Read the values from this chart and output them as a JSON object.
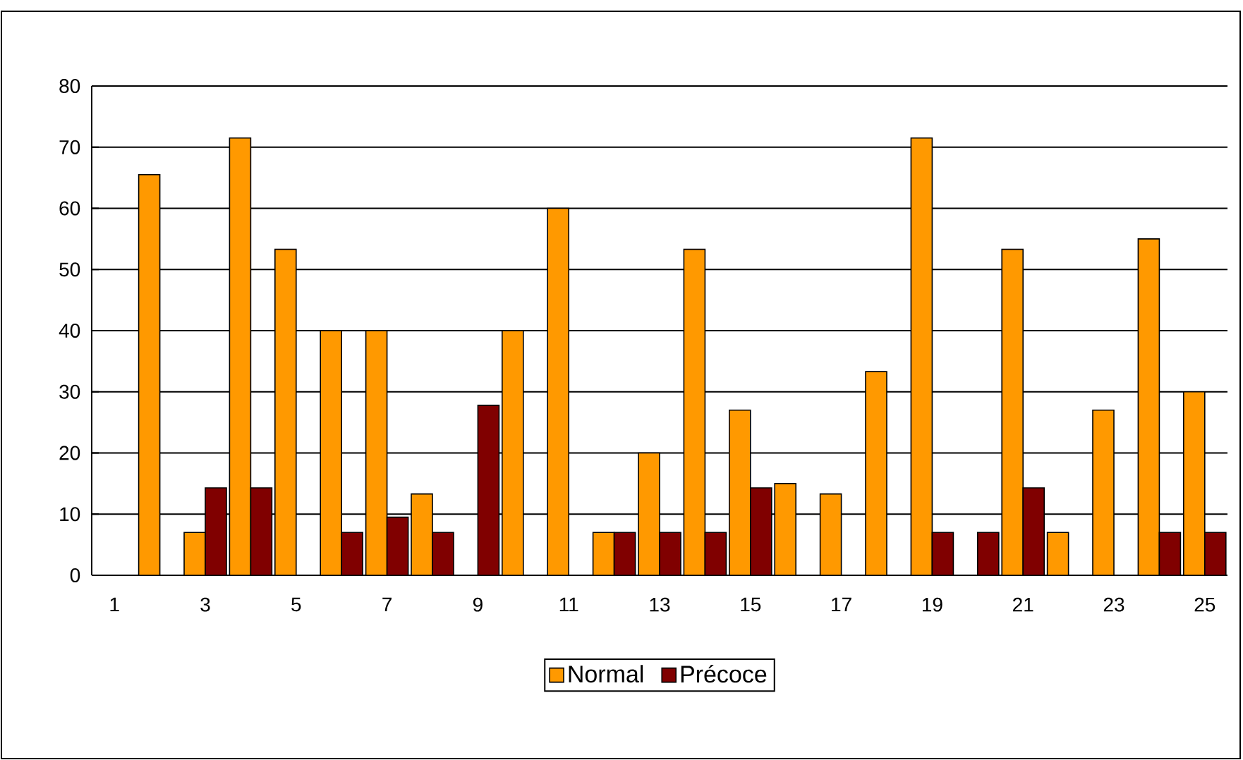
{
  "chart_data": {
    "type": "bar",
    "categories": [
      "1",
      null,
      "3",
      null,
      "5",
      null,
      "7",
      null,
      "9",
      null,
      "11",
      null,
      "13",
      null,
      "15",
      null,
      "17",
      null,
      "19",
      null,
      "21",
      null,
      "23",
      null,
      "25"
    ],
    "series": [
      {
        "name": "Normal",
        "color": "#ff9900",
        "values": [
          0,
          65.5,
          7,
          71.5,
          53.3,
          40,
          40,
          13.3,
          0,
          40,
          60,
          7,
          20,
          53.3,
          27,
          15,
          13.3,
          33.3,
          71.5,
          0,
          53.3,
          7,
          27,
          55,
          30
        ]
      },
      {
        "name": "Précoce",
        "color": "#800000",
        "values": [
          0,
          0,
          14.3,
          14.3,
          0,
          7,
          9.5,
          7,
          27.8,
          0,
          0,
          7,
          7,
          7,
          14.3,
          0,
          0,
          0,
          7,
          7,
          14.3,
          0,
          0,
          7,
          7
        ]
      }
    ],
    "ylim": [
      0,
      80
    ],
    "yticks": [
      0,
      10,
      20,
      30,
      40,
      50,
      60,
      70,
      80
    ],
    "grid": "y",
    "legend": "bottom"
  }
}
